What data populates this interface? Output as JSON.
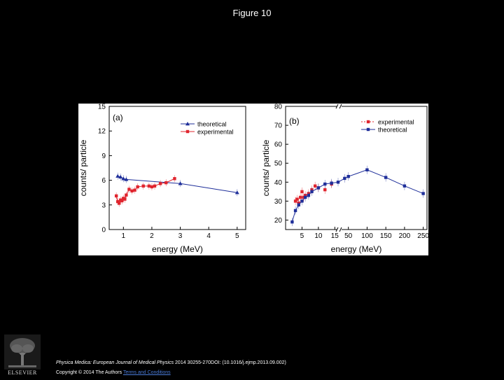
{
  "page_title": "Figure 10",
  "citation": {
    "journal": "Physica Medica: European Journal of Medical Physics",
    "details": " 2014 30255-270DOI: (10.1016/j.ejmp.2013.09.002)"
  },
  "copyright": {
    "text": "Copyright © 2014 The Authors ",
    "license_link": "Terms and Conditions"
  },
  "publisher_logo": "ELSEVIER",
  "colors": {
    "theoretical": "#1f2f9a",
    "experimental": "#e0252e"
  },
  "chart_data": [
    {
      "panel_label": "(a)",
      "type": "line",
      "xlabel": "energy (MeV)",
      "ylabel": "counts/ particle",
      "xlim": [
        0.5,
        5.3
      ],
      "ylim": [
        0,
        15
      ],
      "xticks": [
        "1",
        "2",
        "3",
        "4",
        "5"
      ],
      "yticks": [
        "0",
        "3",
        "6",
        "9",
        "12",
        "15"
      ],
      "legend_position": "top-right",
      "series": [
        {
          "name": "theoretical",
          "marker": "triangle",
          "x": [
            0.8,
            0.9,
            1.0,
            1.1,
            3.0,
            5.0
          ],
          "y": [
            6.5,
            6.4,
            6.2,
            6.1,
            5.6,
            4.5
          ]
        },
        {
          "name": "experimental",
          "marker": "square",
          "x": [
            0.75,
            0.8,
            0.85,
            0.9,
            0.95,
            1.0,
            1.05,
            1.1,
            1.2,
            1.3,
            1.4,
            1.5,
            1.7,
            1.9,
            2.0,
            2.1,
            2.3,
            2.5,
            2.8
          ],
          "y": [
            4.1,
            3.4,
            3.2,
            3.6,
            3.5,
            3.8,
            3.7,
            4.2,
            4.9,
            4.7,
            4.8,
            5.2,
            5.3,
            5.3,
            5.2,
            5.3,
            5.6,
            5.7,
            6.2
          ]
        }
      ]
    },
    {
      "panel_label": "(b)",
      "type": "line",
      "xlabel": "energy (MeV)",
      "ylabel": "counts/ particle",
      "ylim": [
        15,
        80
      ],
      "broken_x_axis": true,
      "xticks": [
        "5",
        "10",
        "15",
        "50",
        "100",
        "150",
        "200",
        "250"
      ],
      "yticks": [
        "20",
        "30",
        "40",
        "50",
        "60",
        "70",
        "80"
      ],
      "legend_position": "top-right",
      "series": [
        {
          "name": "experimental",
          "marker": "square",
          "x": [
            3,
            3.5,
            4,
            4.5,
            5,
            5.5,
            6,
            7,
            8,
            9,
            10,
            12,
            14
          ],
          "y": [
            30,
            31,
            29,
            32,
            35,
            32,
            33,
            34,
            36,
            38,
            37,
            36,
            39
          ]
        },
        {
          "name": "theoretical",
          "marker": "square",
          "x": [
            2,
            3,
            4,
            5,
            6,
            7,
            8,
            10,
            12,
            14,
            16,
            40,
            50,
            100,
            150,
            200,
            250
          ],
          "y": [
            19,
            25,
            28,
            30,
            32,
            33,
            35,
            37,
            39,
            39.5,
            40,
            42,
            43,
            46.5,
            42.5,
            38,
            34
          ]
        }
      ]
    }
  ]
}
